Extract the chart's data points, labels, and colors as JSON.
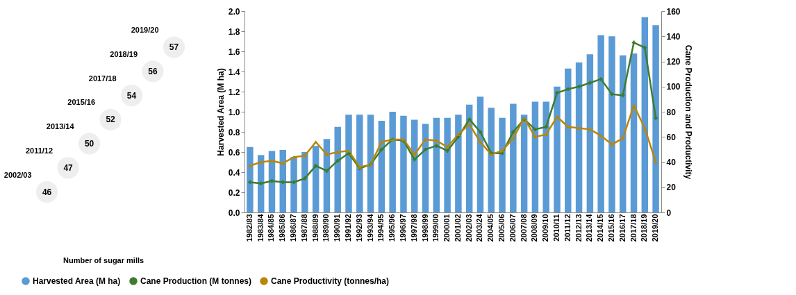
{
  "chart_data": [
    {
      "type": "other",
      "categories": [
        "2002/03",
        "2011/12",
        "2013/14",
        "2015/16",
        "2017/18",
        "2018/19",
        "2019/20"
      ],
      "values": [
        46,
        47,
        50,
        52,
        54,
        56,
        57
      ],
      "color": "#eeeeee",
      "data_labels": true,
      "annotations": [
        "Number of sugar mills"
      ]
    },
    {
      "type": "bar",
      "ylabel": "Harvested Area (M ha)",
      "y2label": "Cane Production and Productivity",
      "categories": [
        "1982/83",
        "1983/84",
        "1984/85",
        "1985/86",
        "1986/87",
        "1987/88",
        "1988/89",
        "1989/90",
        "1990/91",
        "1991/92",
        "1992/93",
        "1993/94",
        "1994/95",
        "1995/96",
        "1996/97",
        "1997/98",
        "1998/99",
        "1999/00",
        "2000/01",
        "2001/02",
        "2002/03",
        "2003/24",
        "2004/05",
        "2005/06",
        "2006/07",
        "2007/08",
        "2008/09",
        "2009/10",
        "2010/11",
        "2011/12",
        "2012/13",
        "2013/14",
        "2014/15",
        "2015/16",
        "2016/17",
        "2017/18",
        "2018/19",
        "2019/20"
      ],
      "series": [
        {
          "name": "Harvested Area (M ha)",
          "type": "bar",
          "color": "#5b9bd5",
          "values": [
            0.65,
            0.57,
            0.61,
            0.62,
            0.55,
            0.6,
            0.66,
            0.73,
            0.85,
            0.97,
            0.97,
            0.97,
            0.91,
            1.0,
            0.96,
            0.92,
            0.88,
            0.94,
            0.94,
            0.97,
            1.07,
            1.15,
            1.04,
            0.94,
            1.08,
            0.97,
            1.1,
            1.1,
            1.25,
            1.43,
            1.49,
            1.57,
            1.76,
            1.75,
            1.56,
            1.58,
            1.94,
            1.86
          ]
        },
        {
          "name": "Cane Production (M tonnes)",
          "type": "line",
          "axis": "y2",
          "marker": "cross",
          "color": "#3e7b2e",
          "values": [
            24,
            23,
            25,
            24,
            24,
            27,
            37,
            33,
            41,
            47,
            35,
            38,
            50,
            58,
            57,
            42,
            50,
            53,
            49,
            60,
            74,
            64,
            47,
            47,
            64,
            74,
            66,
            68,
            95,
            98,
            100,
            103,
            106,
            94,
            93,
            135,
            131,
            75
          ]
        },
        {
          "name": "Cane Productivity (tonnes/ha)",
          "type": "line",
          "axis": "y2",
          "marker": "triangle",
          "color": "#b8860b",
          "values": [
            37,
            40,
            41,
            39,
            44,
            45,
            56,
            46,
            48,
            49,
            36,
            38,
            56,
            58,
            58,
            46,
            58,
            57,
            52,
            62,
            70,
            56,
            46,
            49,
            59,
            75,
            60,
            62,
            76,
            68,
            67,
            66,
            61,
            54,
            59,
            85,
            67,
            40
          ]
        }
      ],
      "ylim": [
        0,
        2
      ],
      "yticks": [
        {
          "value": 0,
          "label": "0.0"
        },
        0.2,
        0.4,
        0.6,
        0.8,
        {
          "value": 1,
          "label": "1.0"
        },
        1.2,
        1.4,
        1.6,
        1.8,
        {
          "value": 2,
          "label": "2.0"
        }
      ],
      "y2lim": [
        0,
        160
      ],
      "y2ticks": [
        0,
        20,
        40,
        60,
        80,
        100,
        120,
        140,
        160
      ],
      "grid": false,
      "legend": "bottom",
      "line_style": "solid"
    }
  ]
}
